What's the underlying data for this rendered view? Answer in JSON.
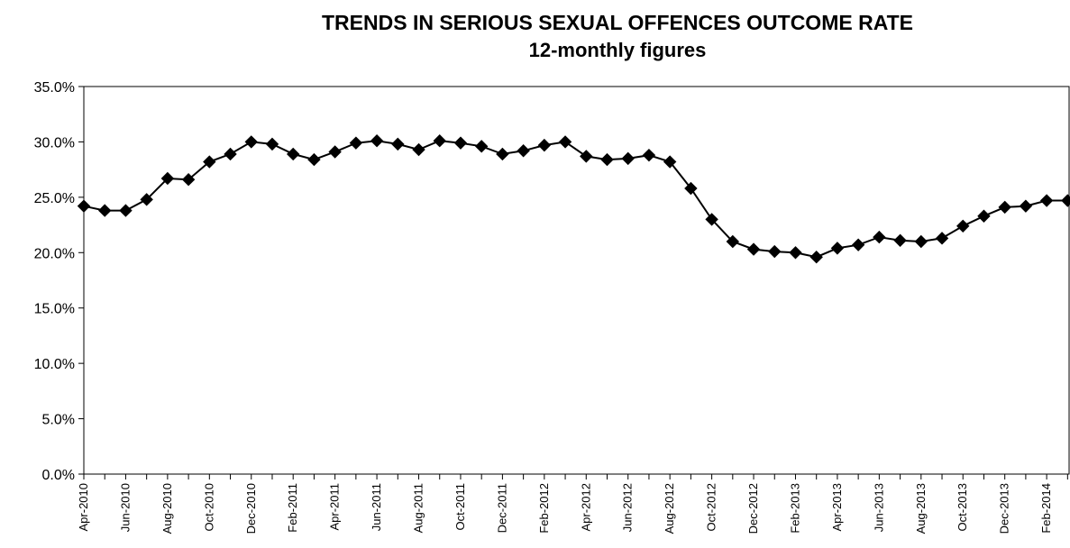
{
  "chart_data": {
    "type": "line",
    "title": "TRENDS IN SERIOUS SEXUAL OFFENCES OUTCOME RATE",
    "subtitle": "12-monthly figures",
    "xlabel": "",
    "ylabel": "",
    "ylim": [
      0,
      35
    ],
    "yticks": [
      "0.0%",
      "5.0%",
      "10.0%",
      "15.0%",
      "20.0%",
      "25.0%",
      "30.0%",
      "35.0%"
    ],
    "grid": false,
    "legend": "none",
    "marker": "diamond",
    "line_color": "#000000",
    "categories": [
      "Apr-2010",
      "May-2010",
      "Jun-2010",
      "Jul-2010",
      "Aug-2010",
      "Sep-2010",
      "Oct-2010",
      "Nov-2010",
      "Dec-2010",
      "Jan-2011",
      "Feb-2011",
      "Mar-2011",
      "Apr-2011",
      "May-2011",
      "Jun-2011",
      "Jul-2011",
      "Aug-2011",
      "Sep-2011",
      "Oct-2011",
      "Nov-2011",
      "Dec-2011",
      "Jan-2012",
      "Feb-2012",
      "Mar-2012",
      "Apr-2012",
      "May-2012",
      "Jun-2012",
      "Jul-2012",
      "Aug-2012",
      "Sep-2012",
      "Oct-2012",
      "Nov-2012",
      "Dec-2012",
      "Jan-2013",
      "Feb-2013",
      "Mar-2013",
      "Apr-2013",
      "May-2013",
      "Jun-2013",
      "Jul-2013",
      "Aug-2013",
      "Sep-2013",
      "Oct-2013",
      "Nov-2013",
      "Dec-2013",
      "Jan-2014",
      "Feb-2014",
      "Mar-2014"
    ],
    "tick_labels": [
      "Apr-2010",
      "Jun-2010",
      "Aug-2010",
      "Oct-2010",
      "Dec-2010",
      "Feb-2011",
      "Apr-2011",
      "Jun-2011",
      "Aug-2011",
      "Oct-2011",
      "Dec-2011",
      "Feb-2012",
      "Apr-2012",
      "Jun-2012",
      "Aug-2012",
      "Oct-2012",
      "Dec-2012",
      "Feb-2013",
      "Apr-2013",
      "Jun-2013",
      "Aug-2013",
      "Oct-2013",
      "Dec-2013",
      "Feb-2014"
    ],
    "series": [
      {
        "values": [
          24.2,
          23.8,
          23.8,
          24.8,
          26.7,
          26.6,
          28.2,
          28.9,
          30.0,
          29.8,
          28.9,
          28.4,
          29.1,
          29.9,
          30.1,
          29.8,
          29.3,
          30.1,
          29.9,
          29.6,
          28.9,
          29.2,
          29.7,
          30.0,
          28.7,
          28.4,
          28.5,
          28.8,
          28.2,
          25.8,
          23.0,
          21.0,
          20.3,
          20.1,
          20.0,
          19.6,
          20.4,
          20.7,
          21.4,
          21.1,
          21.0,
          21.3,
          22.4,
          23.3,
          24.1,
          24.2,
          24.7,
          24.7
        ]
      }
    ]
  }
}
